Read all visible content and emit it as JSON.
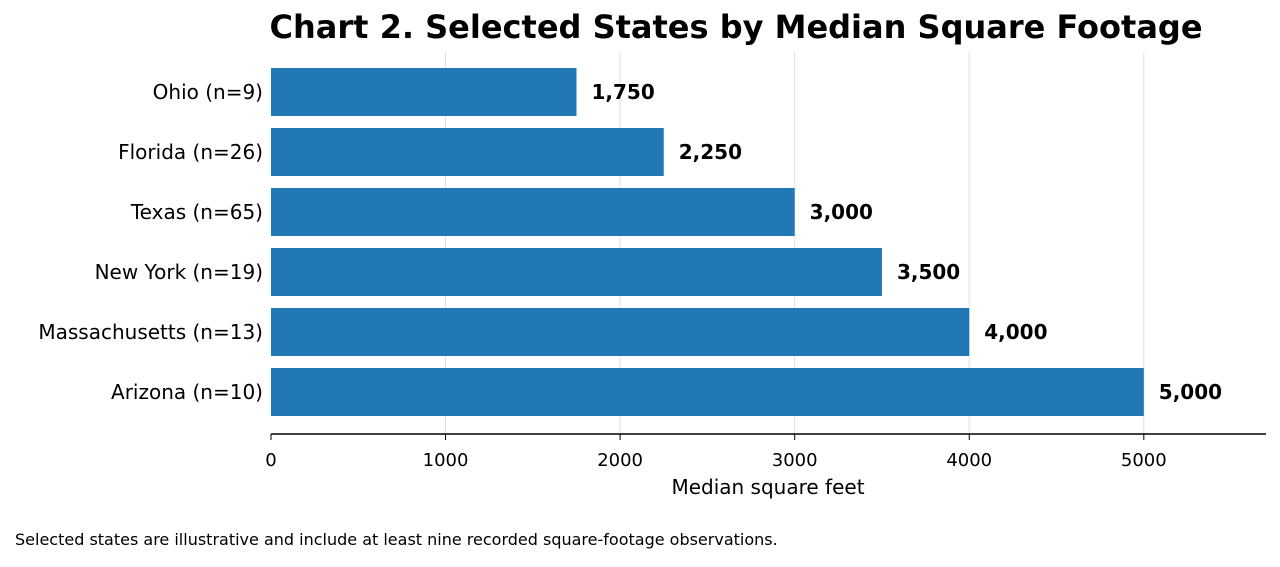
{
  "chart_data": {
    "type": "bar",
    "orientation": "horizontal",
    "title": "Chart 2. Selected States by Median Square Footage",
    "xlabel": "Median square feet",
    "ylabel": "",
    "categories": [
      "Ohio (n=9)",
      "Florida (n=26)",
      "Texas (n=65)",
      "New York (n=19)",
      "Massachusetts (n=13)",
      "Arizona (n=10)"
    ],
    "values": [
      1750,
      2250,
      3000,
      3500,
      4000,
      5000
    ],
    "value_labels": [
      "1,750",
      "2,250",
      "3,000",
      "3,500",
      "4,000",
      "5,000"
    ],
    "xlim": [
      0,
      5700
    ],
    "xticks": [
      0,
      1000,
      2000,
      3000,
      4000,
      5000
    ],
    "grid": "vertical",
    "bar_color": "#2178b4",
    "grid_color": "#e0e0e0"
  },
  "footnote": "Selected states are illustrative and include at least nine recorded square-footage observations."
}
